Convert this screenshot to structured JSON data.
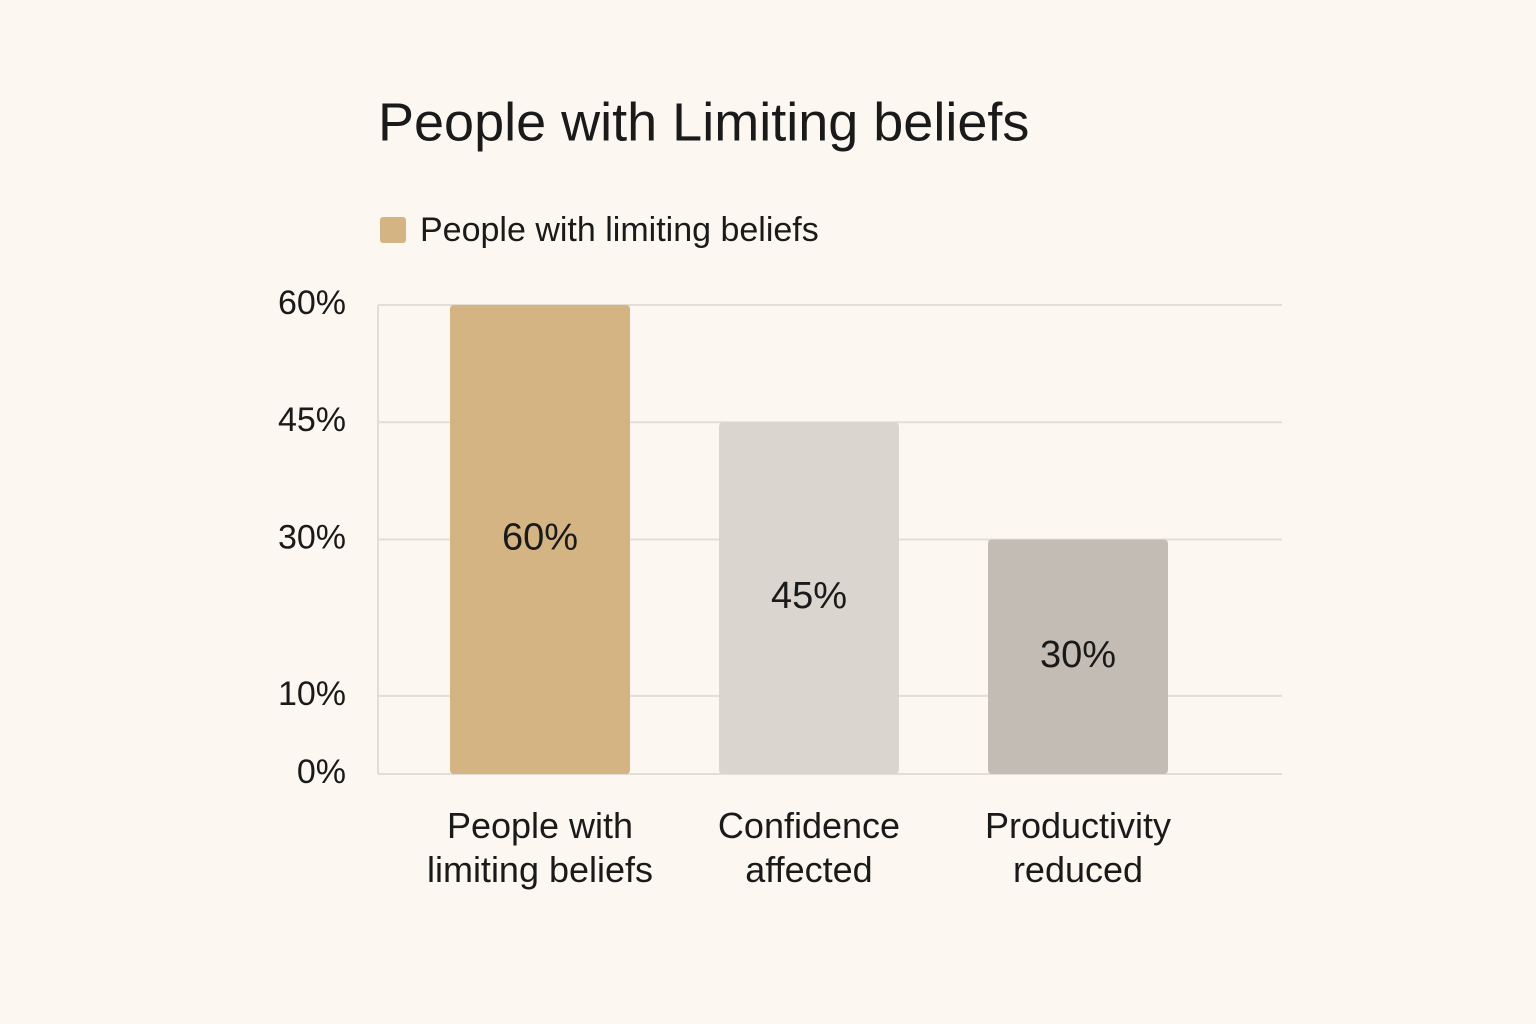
{
  "chart_data": {
    "type": "bar",
    "title": "People with Limiting beliefs",
    "categories": [
      "People with limiting beliefs",
      "Confidence affected",
      "Productivity reduced"
    ],
    "series": [
      {
        "name": "People with limiting beliefs",
        "color": "#d4b483",
        "values": [
          60,
          45,
          30
        ],
        "value_labels": [
          "60%",
          "45%",
          "30%"
        ]
      }
    ],
    "colors": [
      "#d4b483",
      "#dad6cf",
      "#c2bcb4"
    ],
    "ylim": [
      0,
      60
    ],
    "yticks": [
      {
        "value": 0,
        "label": "0%"
      },
      {
        "value": 10,
        "label": "10%"
      },
      {
        "value": 30,
        "label": "30%"
      },
      {
        "value": 45,
        "label": "45%"
      },
      {
        "value": 60,
        "label": "60%"
      }
    ],
    "grid": true,
    "legend": "top-left"
  }
}
